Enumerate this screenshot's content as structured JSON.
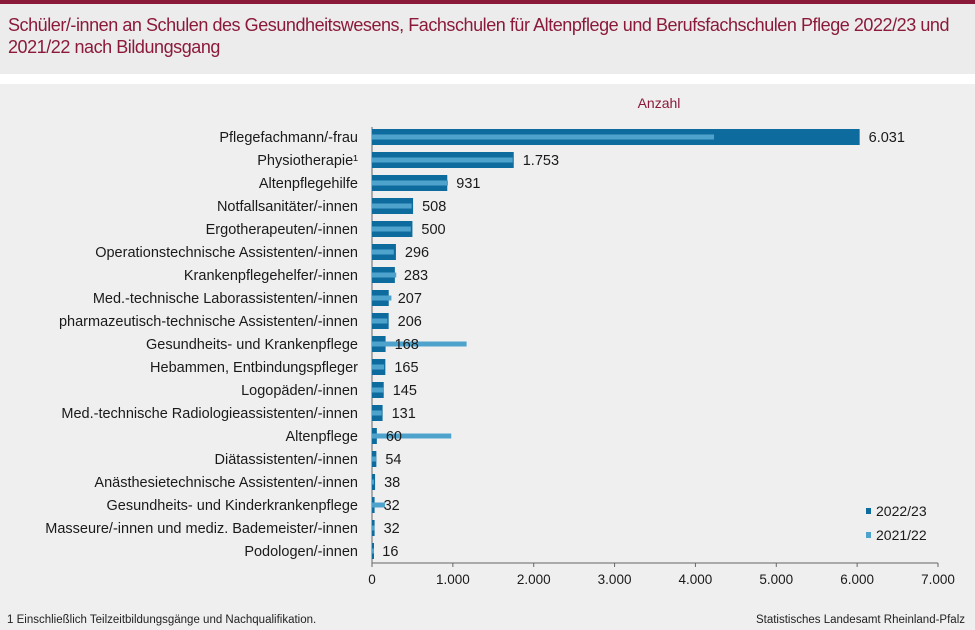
{
  "header": {
    "title": "Schüler/-innen an Schulen des Gesundheitswesens, Fachschulen für Altenpflege und Berufsfachschulen Pflege 2022/23 und 2021/22 nach Bildungsgang"
  },
  "footer": {
    "footnote": "1 Einschließlich Teilzeitbildungsgänge  und Nachqualifikation.",
    "source": "Statistisches Landesamt Rheinland-Pfalz"
  },
  "colors": {
    "accent": "#8b1a3a",
    "series_2022_23": "#0e6b9d",
    "series_2021_22": "#4ea3cc"
  },
  "chart_data": {
    "type": "bar",
    "orientation": "horizontal",
    "unit_label": "Anzahl",
    "categories": [
      "Pflegefachmann/-frau",
      "Physiotherapie¹",
      "Altenpflegehilfe",
      "Notfallsanitäter/-innen",
      "Ergotherapeuten/-innen",
      "Operationstechnische Assistenten/-innen",
      "Krankenpflegehelfer/-innen",
      "Med.-technische Laborassistenten/-innen",
      "pharmazeutisch-technische Assistenten/-innen",
      "Gesundheits- und Krankenpflege",
      "Hebammen, Entbindungspfleger",
      "Logopäden/-innen",
      "Med.-technische Radiologieassistenten/-innen",
      "Altenpflege",
      "Diätassistenten/-innen",
      "Anästhesietechnische Assistenten/-innen",
      "Gesundheits- und Kinderkrankenpflege",
      "Masseure/-innen und mediz. Bademeister/-innen",
      "Podologen/-innen"
    ],
    "series": [
      {
        "name": "2022/23",
        "values": [
          6031,
          1753,
          931,
          508,
          500,
          296,
          283,
          207,
          206,
          168,
          165,
          145,
          131,
          60,
          54,
          38,
          32,
          32,
          16
        ]
      },
      {
        "name": "2021/22",
        "values": [
          4230,
          1740,
          940,
          490,
          480,
          270,
          300,
          240,
          190,
          1170,
          150,
          140,
          120,
          980,
          50,
          25,
          160,
          30,
          20
        ]
      }
    ],
    "data_labels": [
      "6.031",
      "1.753",
      "931",
      "508",
      "500",
      "296",
      "283",
      "207",
      "206",
      "168",
      "165",
      "145",
      "131",
      "60",
      "54",
      "38",
      "32",
      "32",
      "16"
    ],
    "xlim": [
      0,
      7000
    ],
    "xticks": [
      0,
      1000,
      2000,
      3000,
      4000,
      5000,
      6000,
      7000
    ],
    "xtick_labels": [
      "0",
      "1.000",
      "2.000",
      "3.000",
      "4.000",
      "5.000",
      "6.000",
      "7.000"
    ],
    "legend": [
      "2022/23",
      "2021/22"
    ],
    "legend_position": "bottom-right"
  }
}
